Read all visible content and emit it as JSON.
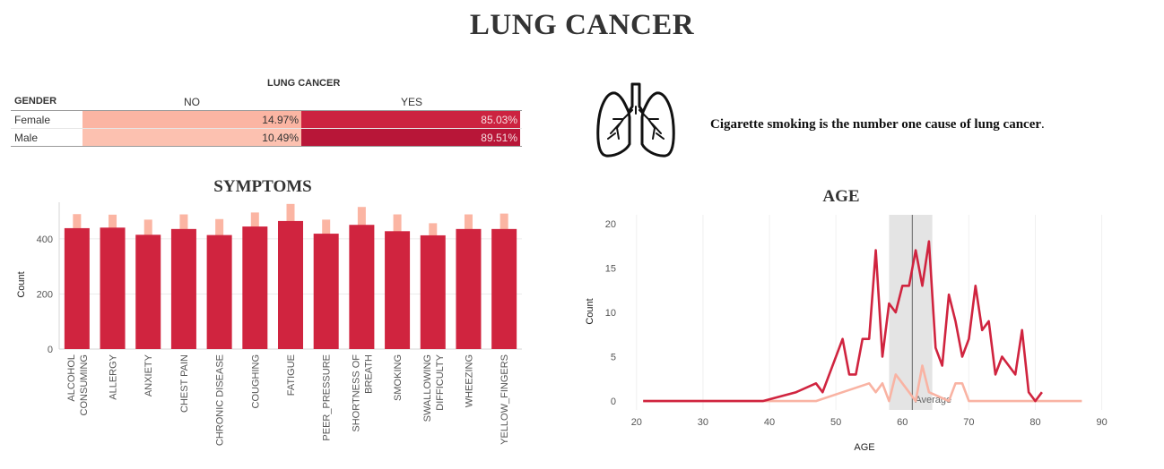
{
  "title": "LUNG CANCER",
  "crosstab": {
    "group_header": "LUNG CANCER",
    "row_header": "GENDER",
    "columns": [
      "NO",
      "YES"
    ],
    "rows": [
      {
        "label": "Female",
        "no": "14.97%",
        "yes": "85.03%"
      },
      {
        "label": "Male",
        "no": "10.49%",
        "yes": "89.51%"
      }
    ],
    "colors": {
      "no_female": "#fbb5a3",
      "no_male": "#fcc1b0",
      "yes_female": "#cc2340",
      "yes_male": "#b81638"
    }
  },
  "lungs_icon": "lungs-icon",
  "fact": {
    "text": "Cigarette smoking is the number one cause of lung cancer",
    "end": "."
  },
  "chart_data": [
    {
      "type": "bar",
      "title": "SYMPTOMS",
      "xlabel": "",
      "ylabel": "Count",
      "ylim": [
        0,
        520
      ],
      "yticks": [
        0,
        200,
        400
      ],
      "grid": true,
      "categories": [
        [
          "ALCOHOL",
          "CONSUMING"
        ],
        [
          "ALLERGY"
        ],
        [
          "ANXIETY"
        ],
        [
          "CHEST PAIN"
        ],
        [
          "CHRONIC DISEASE"
        ],
        [
          "COUGHING"
        ],
        [
          "FATIGUE"
        ],
        [
          "PEER_PRESSURE"
        ],
        [
          "SHORTNESS OF",
          "BREATH"
        ],
        [
          "SMOKING"
        ],
        [
          "SWALLOWING",
          "DIFFICULTY"
        ],
        [
          "WHEEZING"
        ],
        [
          "YELLOW_FINGERS"
        ]
      ],
      "series": [
        {
          "values": [
            490,
            488,
            470,
            489,
            472,
            496,
            527,
            470,
            516,
            489,
            457,
            489,
            492
          ],
          "color": "#fbb5a3"
        },
        {
          "values": [
            439,
            441,
            415,
            436,
            414,
            445,
            465,
            419,
            451,
            428,
            413,
            436,
            436
          ],
          "color": "#d0243f"
        }
      ]
    },
    {
      "type": "line",
      "title": "AGE",
      "xlabel": "AGE",
      "ylabel": "Count",
      "xlim": [
        18,
        91
      ],
      "ylim": [
        -1,
        21
      ],
      "xticks": [
        20,
        30,
        40,
        50,
        60,
        70,
        80,
        90
      ],
      "yticks": [
        0,
        5,
        10,
        15,
        20
      ],
      "reference_line": {
        "label": "Average",
        "value": 61.5,
        "band": [
          58,
          64.5
        ]
      },
      "series": [
        {
          "color": "#d0243f",
          "points": [
            [
              21,
              0
            ],
            [
              39,
              0
            ],
            [
              44,
              1
            ],
            [
              47,
              2
            ],
            [
              48,
              1
            ],
            [
              51,
              7
            ],
            [
              52,
              3
            ],
            [
              53,
              3
            ],
            [
              54,
              7
            ],
            [
              55,
              7
            ],
            [
              56,
              17
            ],
            [
              57,
              5
            ],
            [
              58,
              11
            ],
            [
              59,
              10
            ],
            [
              60,
              13
            ],
            [
              61,
              13
            ],
            [
              62,
              17
            ],
            [
              63,
              13
            ],
            [
              64,
              18
            ],
            [
              65,
              6
            ],
            [
              66,
              4
            ],
            [
              67,
              12
            ],
            [
              68,
              9
            ],
            [
              69,
              5
            ],
            [
              70,
              7
            ],
            [
              71,
              13
            ],
            [
              72,
              8
            ],
            [
              73,
              9
            ],
            [
              74,
              3
            ],
            [
              75,
              5
            ],
            [
              77,
              3
            ],
            [
              78,
              8
            ],
            [
              79,
              1
            ],
            [
              80,
              0
            ],
            [
              81,
              1
            ]
          ]
        },
        {
          "color": "#f9b3a3",
          "points": [
            [
              21,
              0
            ],
            [
              47,
              0
            ],
            [
              51,
              1
            ],
            [
              55,
              2
            ],
            [
              56,
              1
            ],
            [
              57,
              2
            ],
            [
              58,
              0
            ],
            [
              59,
              3
            ],
            [
              60,
              2
            ],
            [
              61,
              1
            ],
            [
              62,
              0
            ],
            [
              63,
              4
            ],
            [
              64,
              1
            ],
            [
              67,
              0
            ],
            [
              68,
              2
            ],
            [
              69,
              2
            ],
            [
              70,
              0
            ],
            [
              87,
              0
            ]
          ]
        }
      ]
    }
  ]
}
